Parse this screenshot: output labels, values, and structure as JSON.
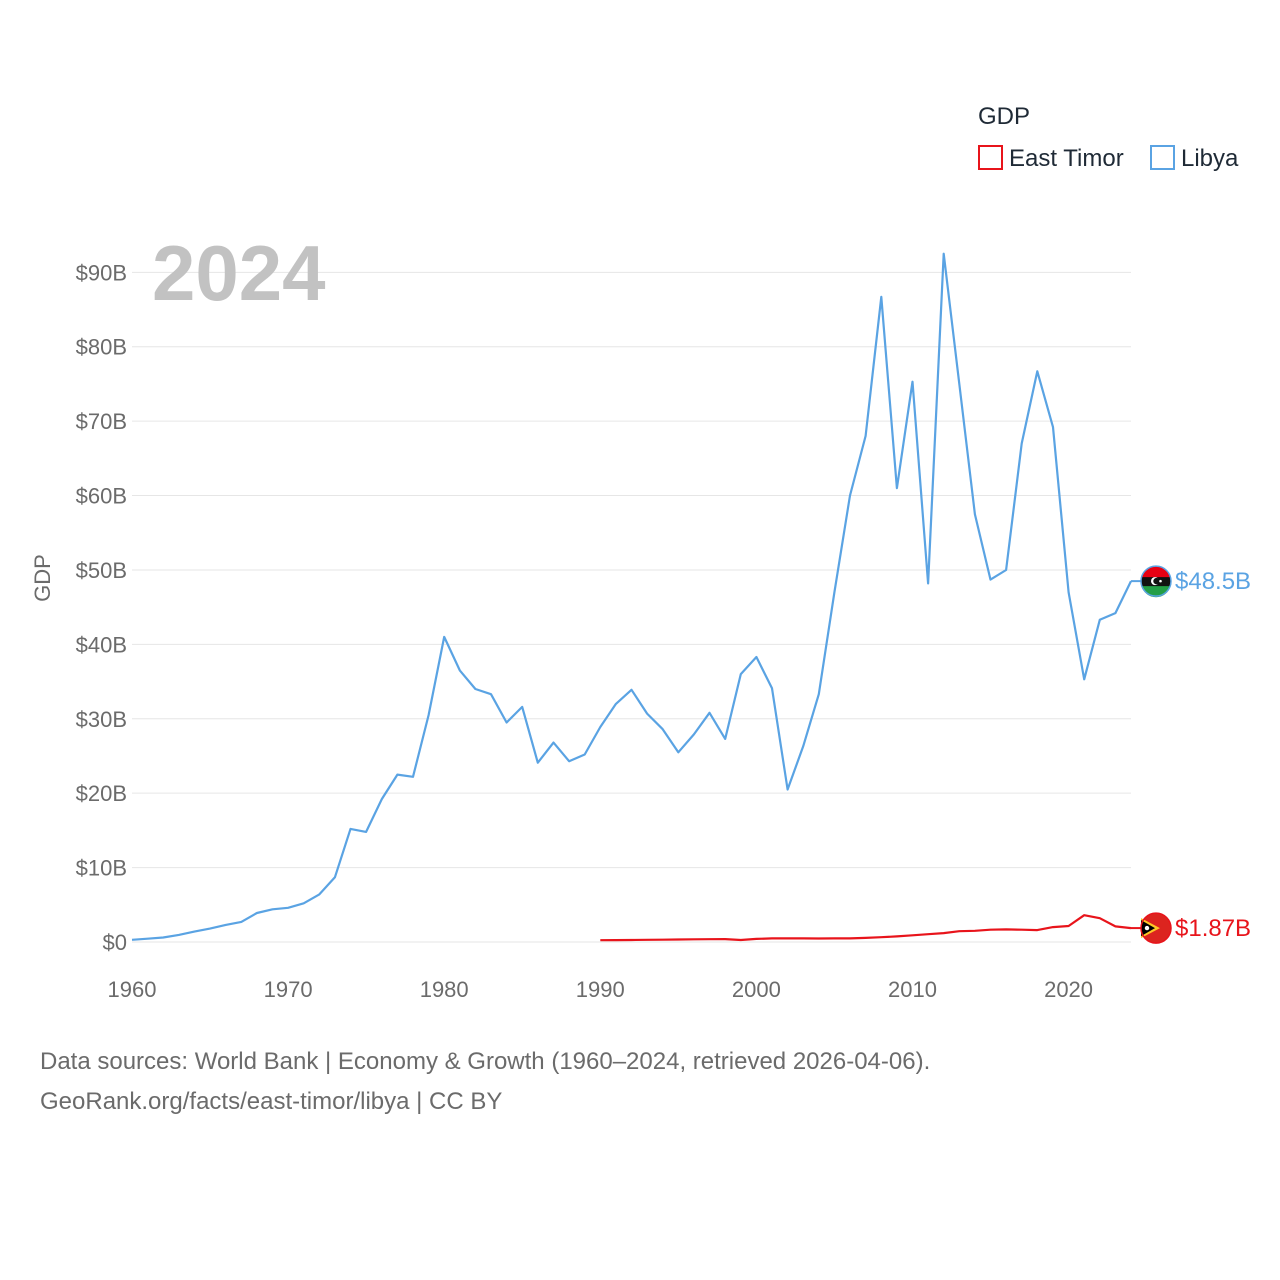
{
  "chart_data": {
    "type": "line",
    "legend_title": "GDP",
    "ylabel": "GDP",
    "xlabel": "",
    "year_label": "2024",
    "xlim": [
      1960,
      2024
    ],
    "ylim": [
      0,
      93
    ],
    "x_ticks": [
      1960,
      1970,
      1980,
      1990,
      2000,
      2010,
      2020
    ],
    "y_ticks": [
      {
        "value": 0,
        "label": "$0"
      },
      {
        "value": 10,
        "label": "$10B"
      },
      {
        "value": 20,
        "label": "$20B"
      },
      {
        "value": 30,
        "label": "$30B"
      },
      {
        "value": 40,
        "label": "$40B"
      },
      {
        "value": 50,
        "label": "$50B"
      },
      {
        "value": 60,
        "label": "$60B"
      },
      {
        "value": 70,
        "label": "$70B"
      },
      {
        "value": 80,
        "label": "$80B"
      },
      {
        "value": 90,
        "label": "$90B"
      }
    ],
    "units": "billions USD",
    "legend_position": "top-right",
    "series": [
      {
        "name": "East Timor",
        "color": "#e8141b",
        "end_label": "$1.87B",
        "flag_icon": "east-timor-flag-icon",
        "x": [
          1990,
          1991,
          1992,
          1993,
          1994,
          1995,
          1996,
          1997,
          1998,
          1999,
          2000,
          2001,
          2002,
          2003,
          2004,
          2005,
          2006,
          2007,
          2008,
          2009,
          2010,
          2011,
          2012,
          2013,
          2014,
          2015,
          2016,
          2017,
          2018,
          2019,
          2020,
          2021,
          2022,
          2023,
          2024
        ],
        "values": [
          0.24,
          0.25,
          0.27,
          0.29,
          0.31,
          0.33,
          0.36,
          0.38,
          0.39,
          0.27,
          0.41,
          0.48,
          0.49,
          0.49,
          0.47,
          0.48,
          0.49,
          0.55,
          0.65,
          0.75,
          0.9,
          1.05,
          1.2,
          1.45,
          1.5,
          1.65,
          1.7,
          1.65,
          1.6,
          2.0,
          2.15,
          3.6,
          3.2,
          2.1,
          1.87
        ]
      },
      {
        "name": "Libya",
        "color": "#5aa3e3",
        "end_label": "$48.5B",
        "flag_icon": "libya-flag-icon",
        "x": [
          1960,
          1961,
          1962,
          1963,
          1964,
          1965,
          1966,
          1967,
          1968,
          1969,
          1970,
          1971,
          1972,
          1973,
          1974,
          1975,
          1976,
          1977,
          1978,
          1979,
          1980,
          1981,
          1982,
          1983,
          1984,
          1985,
          1986,
          1987,
          1988,
          1989,
          1990,
          1991,
          1992,
          1993,
          1994,
          1995,
          1996,
          1997,
          1998,
          1999,
          2000,
          2001,
          2002,
          2003,
          2004,
          2005,
          2006,
          2007,
          2008,
          2009,
          2010,
          2011,
          2012,
          2013,
          2014,
          2015,
          2016,
          2017,
          2018,
          2019,
          2020,
          2021,
          2022,
          2023,
          2024
        ],
        "values": [
          0.3,
          0.45,
          0.6,
          0.95,
          1.4,
          1.8,
          2.3,
          2.7,
          3.9,
          4.4,
          4.6,
          5.2,
          6.4,
          8.7,
          15.2,
          14.8,
          19.2,
          22.5,
          22.2,
          30.5,
          41.0,
          36.5,
          34.0,
          33.3,
          29.5,
          31.6,
          24.1,
          26.8,
          24.3,
          25.2,
          28.9,
          32.0,
          33.9,
          30.7,
          28.6,
          25.5,
          27.9,
          30.8,
          27.3,
          36.0,
          38.3,
          34.1,
          20.5,
          26.3,
          33.3,
          47.0,
          60.0,
          68.0,
          86.7,
          61.0,
          75.3,
          48.2,
          92.5,
          75.0,
          57.5,
          48.7,
          50.0,
          67.0,
          76.7,
          69.2,
          47.0,
          35.3,
          43.3,
          44.2,
          48.5
        ]
      }
    ]
  },
  "source": {
    "line1": "Data sources: World Bank | Economy & Growth (1960–2024, retrieved 2026-04-06).",
    "line2": "GeoRank.org/facts/east-timor/libya | CC BY"
  }
}
